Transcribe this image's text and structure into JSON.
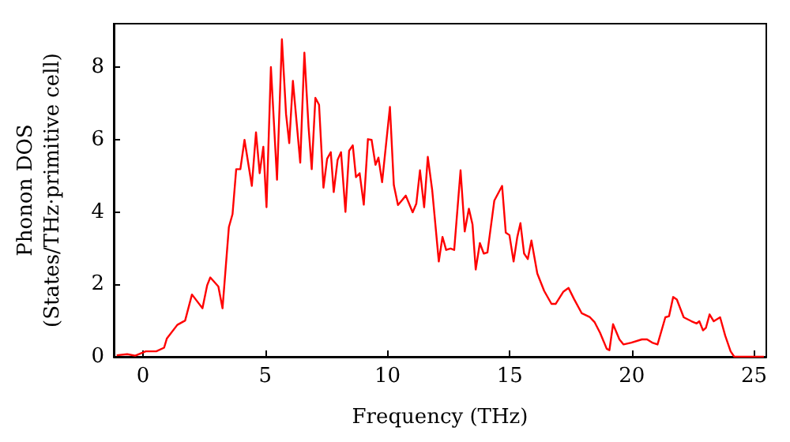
{
  "chart_data": {
    "type": "line",
    "xlabel": "Frequency (THz)",
    "ylabel": "Phonon DOS\n(States/THz·primitive cell)",
    "xlim": [
      -1.2,
      25.5
    ],
    "xticks": [
      0,
      5,
      10,
      15,
      20,
      25
    ],
    "ylim": [
      0,
      9.2
    ],
    "yticks": [
      0,
      2,
      4,
      6,
      8
    ],
    "marker": "none",
    "line_style": "solid",
    "x": [
      -1.08,
      -0.65,
      -0.32,
      0.11,
      0.54,
      0.86,
      0.97,
      1.4,
      1.72,
      2.0,
      2.43,
      2.62,
      2.75,
      3.08,
      3.25,
      3.51,
      3.66,
      3.81,
      3.98,
      4.15,
      4.45,
      4.62,
      4.77,
      4.92,
      5.05,
      5.23,
      5.48,
      5.68,
      5.85,
      5.98,
      6.13,
      6.43,
      6.6,
      6.77,
      6.9,
      7.05,
      7.2,
      7.38,
      7.53,
      7.68,
      7.8,
      7.96,
      8.1,
      8.28,
      8.43,
      8.58,
      8.71,
      8.86,
      9.03,
      9.2,
      9.35,
      9.51,
      9.63,
      9.78,
      10.1,
      10.26,
      10.43,
      10.75,
      11.03,
      11.18,
      11.33,
      11.5,
      11.65,
      11.83,
      12.1,
      12.25,
      12.4,
      12.58,
      12.73,
      12.99,
      13.16,
      13.33,
      13.48,
      13.61,
      13.78,
      13.94,
      14.09,
      14.37,
      14.69,
      14.84,
      14.99,
      15.16,
      15.31,
      15.44,
      15.59,
      15.74,
      15.89,
      16.13,
      16.41,
      16.71,
      16.88,
      17.2,
      17.41,
      17.63,
      17.95,
      18.27,
      18.48,
      18.7,
      18.97,
      19.08,
      19.23,
      19.49,
      19.66,
      19.98,
      20.41,
      20.62,
      20.83,
      21.05,
      21.37,
      21.52,
      21.69,
      21.84,
      22.12,
      22.44,
      22.65,
      22.76,
      22.91,
      23.03,
      23.18,
      23.35,
      23.61,
      23.82,
      24.04,
      24.19,
      24.79,
      25.4
    ],
    "series": [
      {
        "color": "#ff0000",
        "values": [
          0.04,
          0.07,
          0.03,
          0.15,
          0.15,
          0.25,
          0.5,
          0.88,
          1.0,
          1.72,
          1.34,
          1.97,
          2.19,
          1.94,
          1.34,
          3.58,
          3.94,
          5.18,
          5.18,
          5.99,
          4.72,
          6.2,
          5.07,
          5.8,
          4.13,
          8.0,
          4.89,
          8.77,
          6.7,
          5.9,
          7.62,
          5.36,
          8.4,
          6.35,
          5.18,
          7.15,
          6.96,
          4.67,
          5.47,
          5.65,
          4.55,
          5.44,
          5.65,
          4.0,
          5.69,
          5.84,
          4.96,
          5.07,
          4.2,
          6.01,
          5.99,
          5.3,
          5.5,
          4.82,
          6.9,
          4.74,
          4.19,
          4.45,
          3.99,
          4.23,
          5.15,
          4.13,
          5.52,
          4.6,
          2.63,
          3.31,
          2.95,
          2.99,
          2.95,
          5.15,
          3.46,
          4.09,
          3.65,
          2.41,
          3.14,
          2.85,
          2.88,
          4.31,
          4.72,
          3.43,
          3.36,
          2.63,
          3.3,
          3.69,
          2.85,
          2.7,
          3.21,
          2.3,
          1.82,
          1.46,
          1.46,
          1.8,
          1.9,
          1.6,
          1.2,
          1.1,
          0.95,
          0.66,
          0.22,
          0.18,
          0.9,
          0.48,
          0.34,
          0.39,
          0.48,
          0.48,
          0.39,
          0.34,
          1.09,
          1.12,
          1.65,
          1.58,
          1.09,
          0.98,
          0.92,
          0.98,
          0.73,
          0.8,
          1.17,
          0.98,
          1.09,
          0.58,
          0.15,
          0,
          0,
          0
        ]
      }
    ]
  }
}
